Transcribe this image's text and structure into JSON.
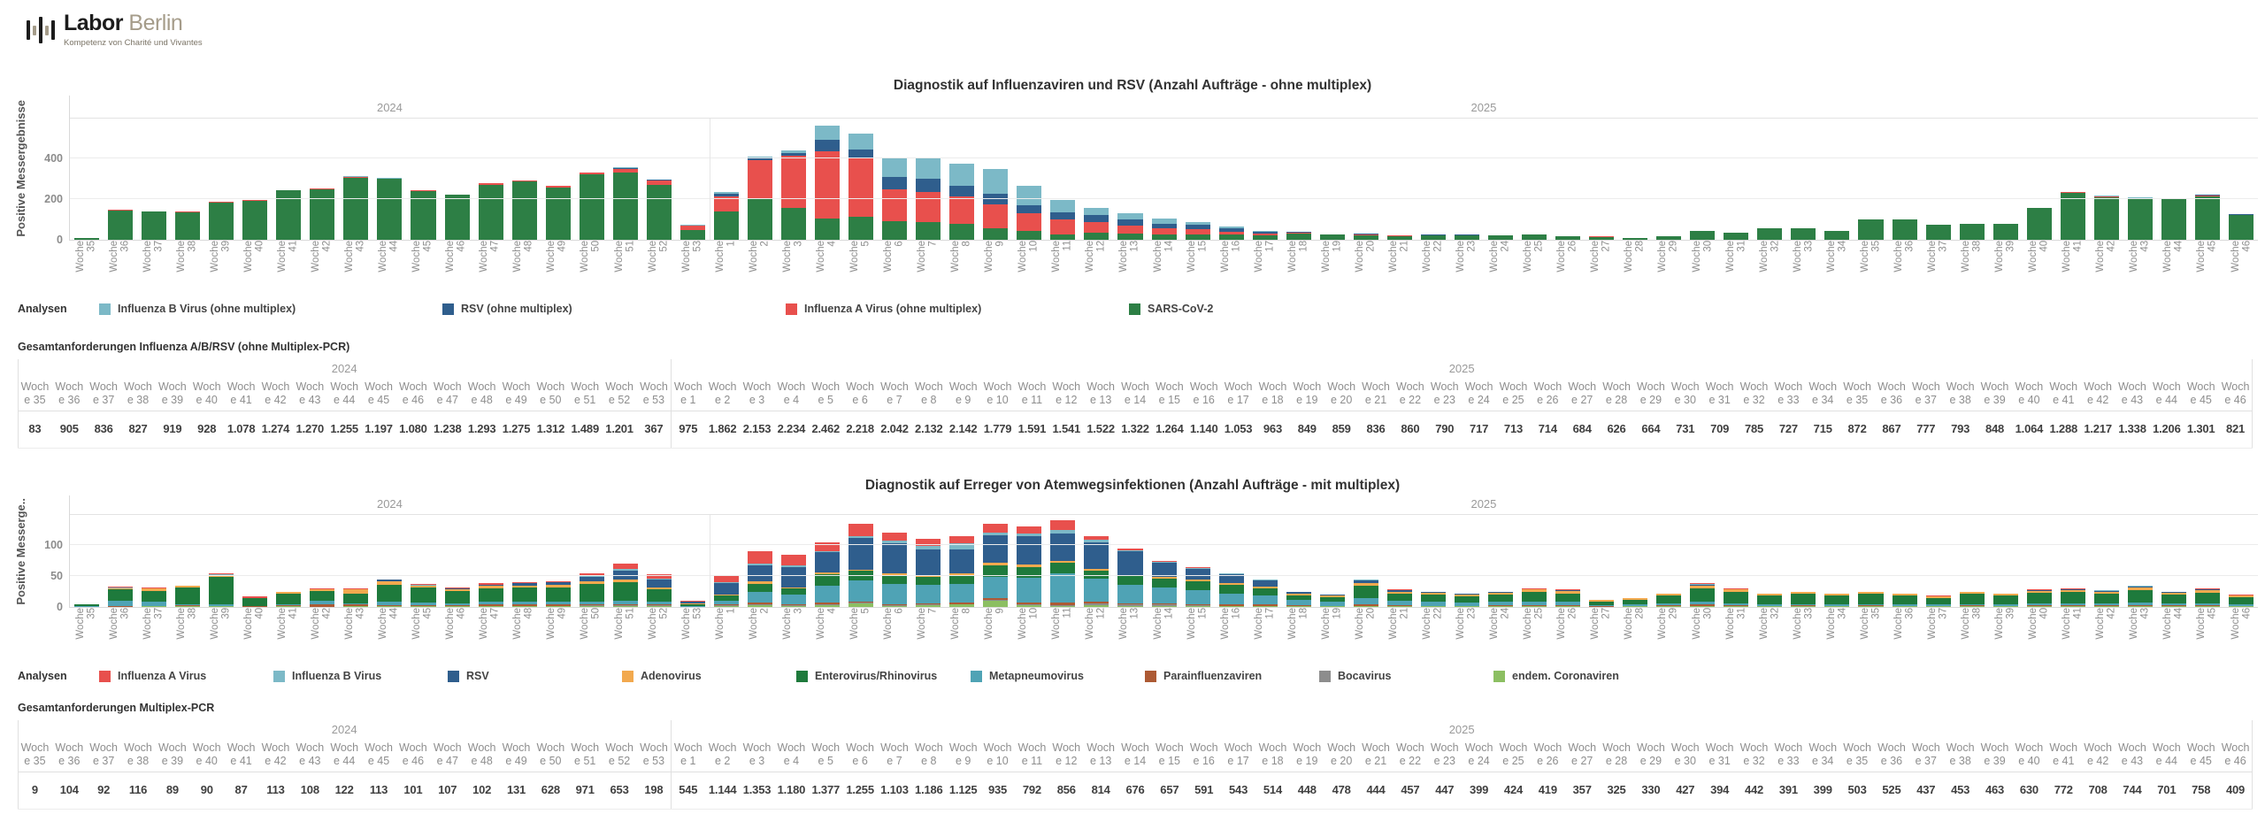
{
  "logo": {
    "brand_bold": "Labor",
    "brand_light": "Berlin",
    "tagline": "Kompetenz von Charité und Vivantes"
  },
  "weeks": [
    "Woche 35",
    "Woche 36",
    "Woche 37",
    "Woche 38",
    "Woche 39",
    "Woche 40",
    "Woche 41",
    "Woche 42",
    "Woche 43",
    "Woche 44",
    "Woche 45",
    "Woche 46",
    "Woche 47",
    "Woche 48",
    "Woche 49",
    "Woche 50",
    "Woche 51",
    "Woche 52",
    "Woche 53",
    "Woche 1",
    "Woche 2",
    "Woche 3",
    "Woche 4",
    "Woche 5",
    "Woche 6",
    "Woche 7",
    "Woche 8",
    "Woche 9",
    "Woche 10",
    "Woche 11",
    "Woche 12",
    "Woche 13",
    "Woche 14",
    "Woche 15",
    "Woche 16",
    "Woche 17",
    "Woche 18",
    "Woche 19",
    "Woche 20",
    "Woche 21",
    "Woche 22",
    "Woche 23",
    "Woche 24",
    "Woche 25",
    "Woche 26",
    "Woche 27",
    "Woche 28",
    "Woche 29",
    "Woche 30",
    "Woche 31",
    "Woche 32",
    "Woche 33",
    "Woche 34",
    "Woche 35",
    "Woche 36",
    "Woche 37",
    "Woche 38",
    "Woche 39",
    "Woche 40",
    "Woche 41",
    "Woche 42",
    "Woche 43",
    "Woche 44",
    "Woche 45",
    "Woche 46"
  ],
  "chart_data": [
    {
      "type": "bar",
      "stacked": true,
      "title": "Diagnostik auf Influenzaviren und RSV (Anzahl Aufträge - ohne multiplex)",
      "ylabel": "Positive Messergebnisse",
      "legend_label": "Analysen",
      "yticks": [
        0,
        200,
        400
      ],
      "ylim": [
        0,
        600
      ],
      "grid": true,
      "legend_position": "bottom",
      "year_groups": [
        {
          "label": "2024",
          "count": 19
        },
        {
          "label": "2025",
          "count": 46
        }
      ],
      "legend_order": [
        "Influenza B Virus (ohne multiplex)",
        "RSV (ohne multiplex)",
        "Influenza A Virus (ohne multiplex)",
        "SARS-CoV-2"
      ],
      "series": [
        {
          "name": "SARS-CoV-2",
          "color": "#2d7f45",
          "values": [
            10,
            145,
            138,
            135,
            182,
            190,
            243,
            248,
            305,
            300,
            238,
            220,
            270,
            285,
            258,
            320,
            330,
            268,
            50,
            140,
            205,
            155,
            105,
            115,
            90,
            85,
            80,
            55,
            42,
            25,
            35,
            30,
            25,
            28,
            25,
            22,
            32,
            24,
            22,
            18,
            20,
            22,
            20,
            25,
            16,
            15,
            8,
            16,
            45,
            35,
            55,
            55,
            45,
            100,
            100,
            75,
            80,
            80,
            155,
            230,
            210,
            200,
            200,
            215,
            120
          ]
        },
        {
          "name": "Influenza A Virus (ohne multiplex)",
          "color": "#e8504d",
          "values": [
            0,
            5,
            2,
            3,
            3,
            4,
            2,
            4,
            2,
            0,
            5,
            3,
            8,
            8,
            8,
            12,
            18,
            22,
            18,
            75,
            185,
            260,
            330,
            290,
            160,
            150,
            135,
            120,
            90,
            75,
            50,
            40,
            30,
            25,
            15,
            8,
            3,
            2,
            3,
            2,
            2,
            2,
            2,
            3,
            2,
            1,
            0,
            2,
            0,
            0,
            0,
            0,
            0,
            0,
            0,
            0,
            0,
            0,
            2,
            4,
            4,
            4,
            4,
            4,
            4
          ]
        },
        {
          "name": "RSV (ohne multiplex)",
          "color": "#2f5e8d",
          "values": [
            0,
            0,
            0,
            0,
            0,
            0,
            0,
            0,
            3,
            0,
            0,
            0,
            0,
            0,
            0,
            0,
            4,
            5,
            2,
            10,
            8,
            10,
            55,
            40,
            60,
            65,
            50,
            50,
            38,
            35,
            35,
            30,
            25,
            20,
            15,
            10,
            3,
            2,
            5,
            2,
            3,
            1,
            0,
            0,
            0,
            0,
            0,
            0,
            0,
            0,
            0,
            0,
            0,
            0,
            0,
            0,
            0,
            0,
            0,
            2,
            1,
            2,
            1,
            1,
            1
          ]
        },
        {
          "name": "Influenza B Virus (ohne multiplex)",
          "color": "#7cb9c7",
          "values": [
            0,
            0,
            0,
            0,
            0,
            0,
            0,
            0,
            2,
            3,
            0,
            0,
            0,
            0,
            0,
            0,
            3,
            0,
            5,
            12,
            10,
            15,
            70,
            75,
            90,
            105,
            110,
            125,
            95,
            60,
            35,
            30,
            25,
            12,
            10,
            5,
            2,
            0,
            0,
            0,
            0,
            1,
            0,
            0,
            0,
            0,
            0,
            0,
            0,
            0,
            0,
            0,
            0,
            0,
            0,
            0,
            0,
            0,
            0,
            1,
            2,
            1,
            1,
            1,
            0
          ]
        }
      ]
    },
    {
      "type": "bar",
      "stacked": true,
      "title": "Diagnostik auf Erreger von Atemwegsinfektionen (Anzahl Aufträge - mit multiplex)",
      "ylabel": "Positive Messerge..",
      "legend_label": "Analysen",
      "yticks": [
        0,
        50,
        100
      ],
      "ylim": [
        0,
        150
      ],
      "grid": true,
      "legend_position": "bottom",
      "year_groups": [
        {
          "label": "2024",
          "count": 19
        },
        {
          "label": "2025",
          "count": 46
        }
      ],
      "legend_order": [
        "Influenza A Virus",
        "Influenza B Virus",
        "RSV",
        "Adenovirus",
        "Enterovirus/Rhinovirus",
        "Metapneumovirus",
        "Parainfluenzaviren",
        "Bocavirus",
        "endem. Coronaviren"
      ],
      "series": [
        {
          "name": "endem. Coronaviren",
          "color": "#8cbf62",
          "values": [
            0,
            0,
            1,
            1,
            1,
            0,
            1,
            0,
            1,
            1,
            1,
            1,
            1,
            1,
            1,
            2,
            2,
            2,
            0,
            2,
            3,
            2,
            3,
            6,
            2,
            3,
            4,
            10,
            3,
            2,
            3,
            2,
            2,
            2,
            1,
            1,
            1,
            1,
            1,
            1,
            1,
            1,
            1,
            1,
            1,
            0,
            1,
            1,
            1,
            1,
            1,
            1,
            1,
            1,
            1,
            1,
            1,
            1,
            1,
            1,
            1,
            1,
            1,
            1,
            1
          ]
        },
        {
          "name": "Bocavirus",
          "color": "#8d8d8d",
          "values": [
            0,
            0,
            0,
            0,
            0,
            0,
            1,
            0,
            1,
            0,
            0,
            0,
            1,
            1,
            1,
            1,
            1,
            1,
            0,
            1,
            1,
            1,
            2,
            1,
            1,
            2,
            1,
            2,
            2,
            1,
            3,
            2,
            2,
            1,
            1,
            1,
            1,
            0,
            1,
            1,
            0,
            0,
            1,
            1,
            1,
            0,
            0,
            1,
            1,
            1,
            0,
            1,
            0,
            1,
            0,
            0,
            1,
            0,
            1,
            1,
            1,
            1,
            1,
            1,
            0
          ]
        },
        {
          "name": "Parainfluenzaviren",
          "color": "#ad5a34",
          "values": [
            0,
            2,
            1,
            2,
            1,
            1,
            1,
            5,
            2,
            2,
            2,
            2,
            2,
            2,
            2,
            2,
            2,
            1,
            0,
            1,
            3,
            1,
            2,
            1,
            2,
            1,
            2,
            2,
            2,
            4,
            2,
            2,
            2,
            2,
            2,
            2,
            1,
            1,
            2,
            1,
            1,
            1,
            1,
            1,
            1,
            1,
            1,
            1,
            2,
            1,
            1,
            1,
            1,
            1,
            1,
            1,
            1,
            1,
            1,
            1,
            1,
            1,
            1,
            1,
            1
          ]
        },
        {
          "name": "Metapneumovirus",
          "color": "#4fa3b5",
          "values": [
            2,
            8,
            6,
            1,
            3,
            1,
            2,
            5,
            2,
            5,
            4,
            3,
            4,
            4,
            4,
            4,
            5,
            4,
            1,
            6,
            18,
            16,
            28,
            35,
            32,
            30,
            30,
            35,
            40,
            48,
            38,
            30,
            25,
            22,
            18,
            14,
            8,
            6,
            10,
            7,
            6,
            5,
            5,
            6,
            5,
            2,
            2,
            3,
            4,
            3,
            2,
            2,
            2,
            2,
            2,
            2,
            2,
            2,
            3,
            3,
            3,
            4,
            3,
            3,
            2
          ]
        },
        {
          "name": "Enterovirus/Rhinovirus",
          "color": "#1e7a3c",
          "values": [
            3,
            18,
            18,
            28,
            43,
            12,
            17,
            16,
            16,
            28,
            24,
            20,
            22,
            24,
            24,
            28,
            30,
            20,
            4,
            8,
            12,
            10,
            18,
            15,
            14,
            12,
            15,
            18,
            18,
            16,
            12,
            14,
            15,
            14,
            14,
            12,
            8,
            8,
            20,
            12,
            12,
            10,
            12,
            15,
            14,
            6,
            8,
            12,
            22,
            18,
            14,
            16,
            14,
            16,
            14,
            11,
            16,
            14,
            17,
            18,
            16,
            20,
            14,
            17,
            12
          ]
        },
        {
          "name": "Adenovirus",
          "color": "#f2a94e",
          "values": [
            0,
            2,
            4,
            2,
            3,
            1,
            2,
            3,
            6,
            5,
            4,
            3,
            4,
            3,
            4,
            4,
            5,
            4,
            1,
            2,
            4,
            2,
            3,
            2,
            4,
            3,
            3,
            4,
            4,
            3,
            4,
            2,
            3,
            3,
            3,
            3,
            2,
            2,
            4,
            3,
            3,
            3,
            3,
            4,
            4,
            2,
            2,
            3,
            5,
            4,
            3,
            3,
            3,
            3,
            3,
            2,
            3,
            3,
            3,
            3,
            3,
            4,
            3,
            4,
            2
          ]
        },
        {
          "name": "RSV",
          "color": "#2f5e8d",
          "values": [
            0,
            0,
            0,
            0,
            1,
            0,
            0,
            0,
            0,
            3,
            0,
            1,
            2,
            3,
            4,
            8,
            14,
            12,
            2,
            18,
            26,
            32,
            32,
            52,
            48,
            42,
            38,
            45,
            45,
            45,
            42,
            38,
            22,
            18,
            14,
            10,
            3,
            2,
            5,
            2,
            1,
            1,
            1,
            1,
            1,
            0,
            0,
            0,
            1,
            1,
            0,
            0,
            0,
            0,
            0,
            0,
            0,
            0,
            1,
            1,
            1,
            2,
            1,
            1,
            1
          ]
        },
        {
          "name": "Influenza B Virus",
          "color": "#7cb9c7",
          "values": [
            0,
            1,
            0,
            0,
            1,
            0,
            0,
            0,
            0,
            0,
            1,
            0,
            0,
            0,
            0,
            1,
            2,
            2,
            0,
            2,
            3,
            3,
            2,
            3,
            4,
            5,
            10,
            4,
            4,
            6,
            4,
            2,
            2,
            1,
            1,
            1,
            0,
            0,
            1,
            0,
            0,
            0,
            0,
            0,
            0,
            0,
            0,
            0,
            1,
            0,
            0,
            0,
            0,
            0,
            0,
            0,
            0,
            0,
            0,
            1,
            1,
            1,
            0,
            1,
            0
          ]
        },
        {
          "name": "Influenza A Virus",
          "color": "#e8504d",
          "values": [
            0,
            2,
            2,
            1,
            2,
            2,
            1,
            1,
            2,
            1,
            1,
            2,
            2,
            2,
            2,
            5,
            9,
            7,
            2,
            10,
            20,
            18,
            15,
            20,
            13,
            12,
            12,
            15,
            12,
            15,
            7,
            3,
            2,
            2,
            1,
            1,
            1,
            0,
            1,
            1,
            1,
            1,
            1,
            1,
            1,
            1,
            1,
            1,
            1,
            1,
            1,
            1,
            1,
            1,
            1,
            1,
            1,
            1,
            1,
            1,
            1,
            1,
            1,
            1,
            1
          ]
        }
      ]
    }
  ],
  "tables": [
    {
      "title": "Gesamtanforderungen Influenza A/B/RSV (ohne Multiplex-PCR)",
      "year_groups": [
        {
          "label": "2024",
          "count": 19
        },
        {
          "label": "2025",
          "count": 46
        }
      ],
      "values": [
        "83",
        "905",
        "836",
        "827",
        "919",
        "928",
        "1.078",
        "1.274",
        "1.270",
        "1.255",
        "1.197",
        "1.080",
        "1.238",
        "1.293",
        "1.275",
        "1.312",
        "1.489",
        "1.201",
        "367",
        "975",
        "1.862",
        "2.153",
        "2.234",
        "2.462",
        "2.218",
        "2.042",
        "2.132",
        "2.142",
        "1.779",
        "1.591",
        "1.541",
        "1.522",
        "1.322",
        "1.264",
        "1.140",
        "1.053",
        "963",
        "849",
        "859",
        "836",
        "860",
        "790",
        "717",
        "713",
        "714",
        "684",
        "626",
        "664",
        "731",
        "709",
        "785",
        "727",
        "715",
        "872",
        "867",
        "777",
        "793",
        "848",
        "1.064",
        "1.288",
        "1.217",
        "1.338",
        "1.206",
        "1.301",
        "821"
      ]
    },
    {
      "title": "Gesamtanforderungen Multiplex-PCR",
      "year_groups": [
        {
          "label": "2024",
          "count": 19
        },
        {
          "label": "2025",
          "count": 46
        }
      ],
      "values": [
        "9",
        "104",
        "92",
        "116",
        "89",
        "90",
        "87",
        "113",
        "108",
        "122",
        "113",
        "101",
        "107",
        "102",
        "131",
        "628",
        "971",
        "653",
        "198",
        "545",
        "1.144",
        "1.353",
        "1.180",
        "1.377",
        "1.255",
        "1.103",
        "1.186",
        "1.125",
        "935",
        "792",
        "856",
        "814",
        "676",
        "657",
        "591",
        "543",
        "514",
        "448",
        "478",
        "444",
        "457",
        "447",
        "399",
        "424",
        "419",
        "357",
        "325",
        "330",
        "427",
        "394",
        "442",
        "391",
        "399",
        "503",
        "525",
        "437",
        "453",
        "463",
        "630",
        "772",
        "708",
        "744",
        "701",
        "758",
        "409"
      ]
    }
  ]
}
